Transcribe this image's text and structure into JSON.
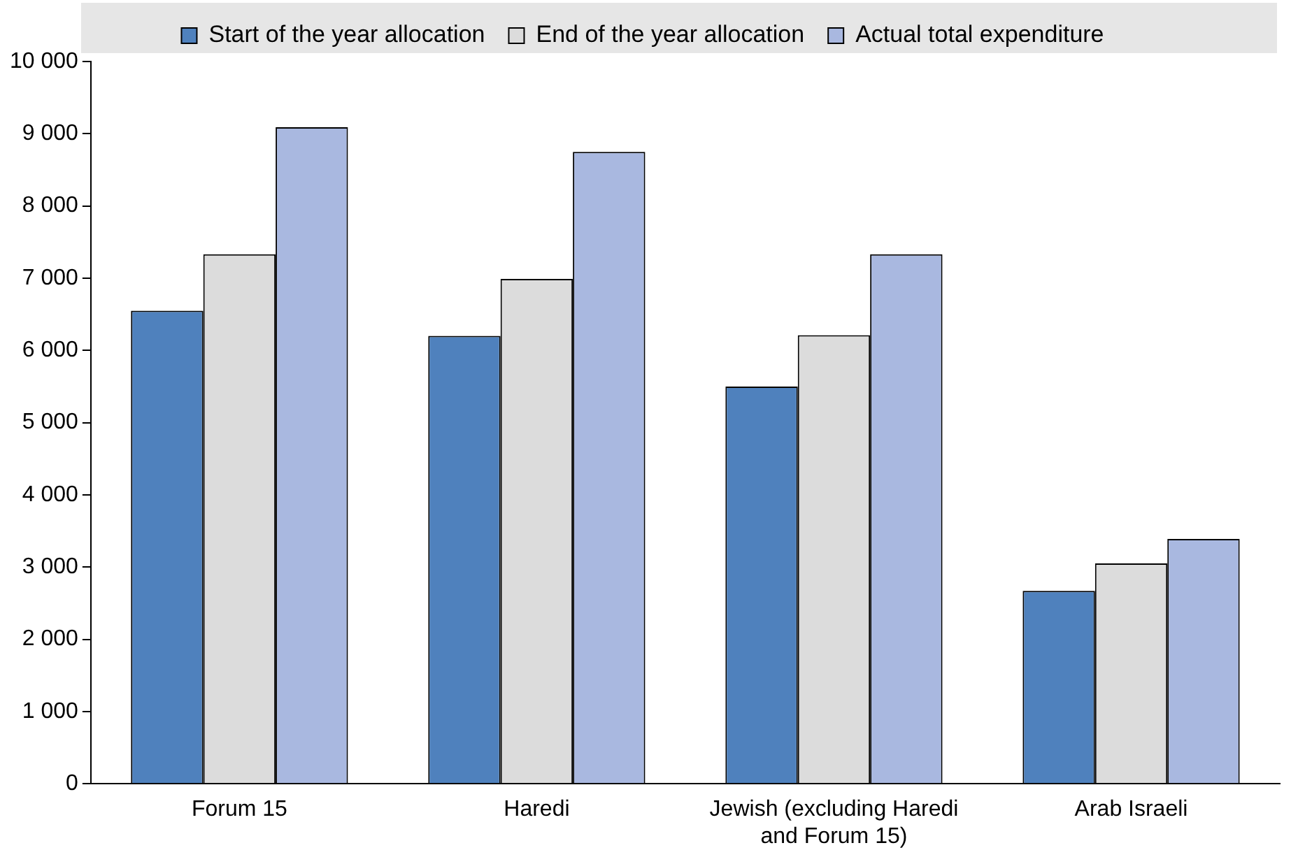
{
  "chart_data": {
    "type": "bar",
    "categories": [
      "Forum 15",
      "Haredi",
      "Jewish (excluding Haredi and Forum 15)",
      "Arab Israeli"
    ],
    "series": [
      {
        "name": "Start of the year allocation",
        "color": "#4f81bd",
        "values": [
          6550,
          6200,
          5500,
          2670
        ]
      },
      {
        "name": "End of the year allocation",
        "color": "#dcdcdc",
        "values": [
          7330,
          6990,
          6210,
          3050
        ]
      },
      {
        "name": "Actual total expenditure",
        "color": "#a9b8e0",
        "values": [
          9090,
          8750,
          7330,
          3390
        ]
      }
    ],
    "ylim": [
      0,
      10000
    ],
    "yticks": [
      0,
      {
        "value": 1000,
        "label": "1 000"
      },
      {
        "value": 2000,
        "label": "2 000"
      },
      {
        "value": 3000,
        "label": "3 000"
      },
      {
        "value": 4000,
        "label": "4 000"
      },
      {
        "value": 5000,
        "label": "5 000"
      },
      {
        "value": 6000,
        "label": "6 000"
      },
      {
        "value": 7000,
        "label": "7 000"
      },
      {
        "value": 8000,
        "label": "8 000"
      },
      {
        "value": 9000,
        "label": "9 000"
      },
      {
        "value": 10000,
        "label": "10 000"
      }
    ],
    "grid": false,
    "legend": "top"
  }
}
